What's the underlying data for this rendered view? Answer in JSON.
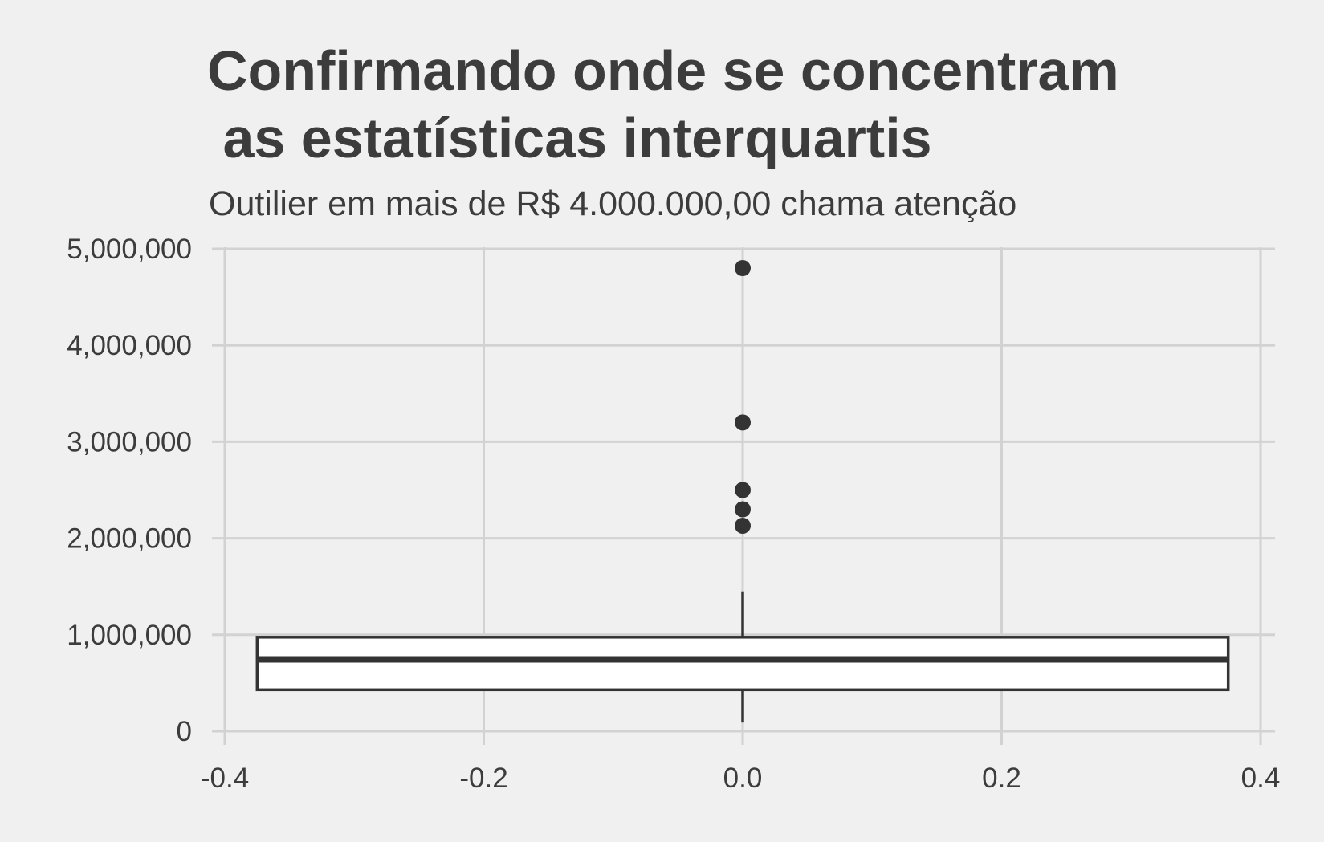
{
  "chart_data": {
    "type": "box",
    "title": "Confirmando onde se concentram\n as estatísticas interquartis",
    "subtitle": "Outilier em mais de R$ 4.000.000,00 chama atenção",
    "xlim": [
      -0.4,
      0.4
    ],
    "ylim": [
      0,
      5000000
    ],
    "x_ticks": [
      -0.4,
      -0.2,
      0.0,
      0.2,
      0.4
    ],
    "x_tick_labels": [
      "-0.4",
      "-0.2",
      "0.0",
      "0.2",
      "0.4"
    ],
    "y_ticks": [
      0,
      1000000,
      2000000,
      3000000,
      4000000,
      5000000
    ],
    "y_tick_labels": [
      "0",
      "1,000,000",
      "2,000,000",
      "3,000,000",
      "4,000,000",
      "5,000,000"
    ],
    "grid": true,
    "box": {
      "x": 0.0,
      "x_range": [
        -0.375,
        0.375
      ],
      "whisker_low": 90000,
      "q1": 430000,
      "median": 745000,
      "q3": 975000,
      "whisker_high": 1450000
    },
    "outliers": [
      2130000,
      2300000,
      2500000,
      3200000,
      4800000
    ]
  },
  "colors": {
    "background": "#f0f0f0",
    "grid": "#d2d2d2",
    "text": "#3c3c3c",
    "box_fill": "#ffffff",
    "box_stroke": "#333333"
  }
}
